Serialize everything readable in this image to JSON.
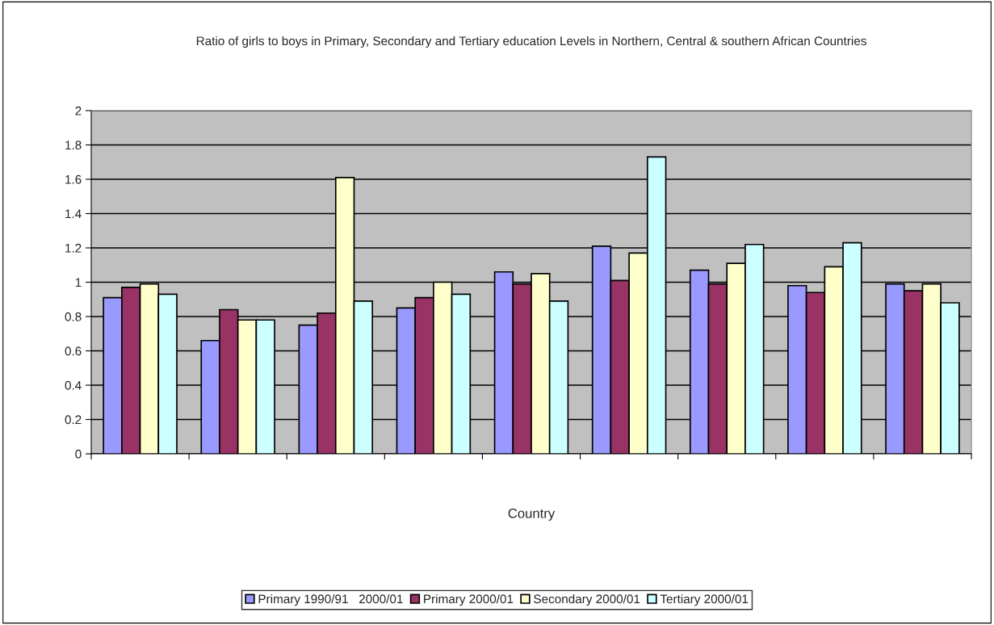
{
  "chart_data": {
    "type": "bar",
    "title": "Ratio of girls to boys in Primary, Secondary and Tertiary education Levels in Northern, Central & southern African Countries",
    "xlabel": "Country",
    "categories": [
      null,
      null,
      null,
      null,
      null,
      null,
      null,
      null,
      null
    ],
    "series": [
      {
        "name": "Primary 1990/91   2000/01",
        "color": "#9999ff",
        "values": [
          0.91,
          0.66,
          0.75,
          0.85,
          1.06,
          1.21,
          1.07,
          0.98,
          0.99
        ]
      },
      {
        "name": "Primary 2000/01",
        "color": "#993366",
        "values": [
          0.97,
          0.84,
          0.82,
          0.91,
          0.99,
          1.01,
          0.99,
          0.94,
          0.95
        ]
      },
      {
        "name": "Secondary 2000/01",
        "color": "#ffffcc",
        "values": [
          0.99,
          0.78,
          1.61,
          1.0,
          1.05,
          1.17,
          1.11,
          1.09,
          0.99
        ]
      },
      {
        "name": "Tertiary 2000/01",
        "color": "#ccffff",
        "values": [
          0.93,
          0.78,
          0.89,
          0.93,
          0.89,
          1.73,
          1.22,
          1.23,
          0.88
        ]
      }
    ],
    "ylim": [
      0,
      2
    ],
    "yticks": [
      0,
      0.2,
      0.4,
      0.6,
      0.8,
      1,
      1.2,
      1.4,
      1.6,
      1.8,
      2
    ],
    "grid": "y",
    "legend": "bottom"
  }
}
